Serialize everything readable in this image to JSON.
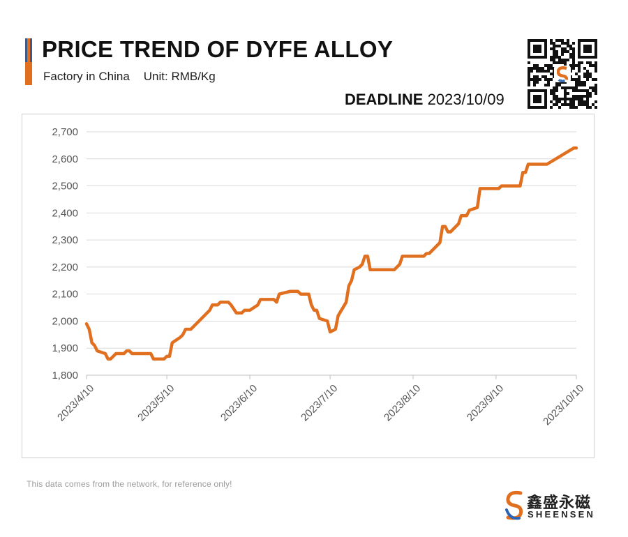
{
  "header": {
    "title": "PRICE TREND OF DYFE ALLOY",
    "subtitle_left": "Factory in China",
    "subtitle_right": "Unit: RMB/Kg",
    "deadline_label": "DEADLINE",
    "deadline_date": "2023/10/09"
  },
  "colors": {
    "line": "#e07020",
    "accent_blue": "#3d5a8a",
    "accent_orange": "#e07020",
    "grid": "#d9d9d9"
  },
  "icons": {
    "qr": "qr-code-icon",
    "brand": "sheensen-logo-icon"
  },
  "footer": {
    "note": "This data comes from the network, for reference only!",
    "brand_cn": "鑫盛永磁",
    "brand_en": "SHEENSEN"
  },
  "chart_data": {
    "type": "line",
    "title": "PRICE TREND OF DYFE ALLOY",
    "ylabel": "Unit: RMB/Kg",
    "ylim": [
      1800,
      2700
    ],
    "yticks": [
      1800,
      1900,
      2000,
      2100,
      2200,
      2300,
      2400,
      2500,
      2600,
      2700
    ],
    "ytick_labels": [
      "1,800",
      "1,900",
      "2,000",
      "2,100",
      "2,200",
      "2,300",
      "2,400",
      "2,500",
      "2,600",
      "2,700"
    ],
    "xlim": [
      "2023/4/10",
      "2023/10/10"
    ],
    "xticks": [
      "2023/4/10",
      "2023/5/10",
      "2023/6/10",
      "2023/7/10",
      "2023/8/10",
      "2023/9/10",
      "2023/10/10"
    ],
    "grid": "horizontal",
    "legend": "none",
    "series": [
      {
        "values": [
          [
            "2023/4/10",
            1990
          ],
          [
            "2023/4/11",
            1970
          ],
          [
            "2023/4/12",
            1920
          ],
          [
            "2023/4/13",
            1910
          ],
          [
            "2023/4/14",
            1890
          ],
          [
            "2023/4/17",
            1880
          ],
          [
            "2023/4/18",
            1860
          ],
          [
            "2023/4/19",
            1860
          ],
          [
            "2023/4/21",
            1880
          ],
          [
            "2023/4/24",
            1880
          ],
          [
            "2023/4/25",
            1890
          ],
          [
            "2023/4/26",
            1890
          ],
          [
            "2023/4/27",
            1880
          ],
          [
            "2023/5/4",
            1880
          ],
          [
            "2023/5/5",
            1860
          ],
          [
            "2023/5/9",
            1860
          ],
          [
            "2023/5/10",
            1870
          ],
          [
            "2023/5/11",
            1870
          ],
          [
            "2023/5/12",
            1920
          ],
          [
            "2023/5/15",
            1940
          ],
          [
            "2023/5/16",
            1950
          ],
          [
            "2023/5/17",
            1970
          ],
          [
            "2023/5/19",
            1970
          ],
          [
            "2023/5/20",
            1980
          ],
          [
            "2023/5/22",
            2000
          ],
          [
            "2023/5/25",
            2030
          ],
          [
            "2023/5/26",
            2040
          ],
          [
            "2023/5/27",
            2060
          ],
          [
            "2023/5/29",
            2060
          ],
          [
            "2023/5/30",
            2070
          ],
          [
            "2023/6/2",
            2070
          ],
          [
            "2023/6/3",
            2060
          ],
          [
            "2023/6/5",
            2030
          ],
          [
            "2023/6/7",
            2030
          ],
          [
            "2023/6/8",
            2040
          ],
          [
            "2023/6/10",
            2040
          ],
          [
            "2023/6/13",
            2060
          ],
          [
            "2023/6/14",
            2080
          ],
          [
            "2023/6/19",
            2080
          ],
          [
            "2023/6/20",
            2070
          ],
          [
            "2023/6/21",
            2100
          ],
          [
            "2023/6/25",
            2110
          ],
          [
            "2023/6/28",
            2110
          ],
          [
            "2023/6/29",
            2100
          ],
          [
            "2023/7/2",
            2100
          ],
          [
            "2023/7/3",
            2060
          ],
          [
            "2023/7/4",
            2040
          ],
          [
            "2023/7/5",
            2040
          ],
          [
            "2023/7/6",
            2010
          ],
          [
            "2023/7/9",
            2000
          ],
          [
            "2023/7/10",
            1960
          ],
          [
            "2023/7/12",
            1970
          ],
          [
            "2023/7/13",
            2020
          ],
          [
            "2023/7/16",
            2070
          ],
          [
            "2023/7/17",
            2130
          ],
          [
            "2023/7/18",
            2150
          ],
          [
            "2023/7/19",
            2190
          ],
          [
            "2023/7/21",
            2200
          ],
          [
            "2023/7/22",
            2210
          ],
          [
            "2023/7/23",
            2240
          ],
          [
            "2023/7/24",
            2240
          ],
          [
            "2023/7/25",
            2190
          ],
          [
            "2023/8/3",
            2190
          ],
          [
            "2023/8/5",
            2210
          ],
          [
            "2023/8/6",
            2240
          ],
          [
            "2023/8/14",
            2240
          ],
          [
            "2023/8/15",
            2250
          ],
          [
            "2023/8/16",
            2250
          ],
          [
            "2023/8/20",
            2290
          ],
          [
            "2023/8/21",
            2350
          ],
          [
            "2023/8/22",
            2350
          ],
          [
            "2023/8/23",
            2330
          ],
          [
            "2023/8/24",
            2330
          ],
          [
            "2023/8/27",
            2360
          ],
          [
            "2023/8/28",
            2390
          ],
          [
            "2023/8/30",
            2390
          ],
          [
            "2023/8/31",
            2410
          ],
          [
            "2023/9/3",
            2420
          ],
          [
            "2023/9/4",
            2490
          ],
          [
            "2023/9/11",
            2490
          ],
          [
            "2023/9/12",
            2500
          ],
          [
            "2023/9/19",
            2500
          ],
          [
            "2023/9/20",
            2550
          ],
          [
            "2023/9/21",
            2550
          ],
          [
            "2023/9/22",
            2580
          ],
          [
            "2023/9/29",
            2580
          ],
          [
            "2023/10/9",
            2640
          ],
          [
            "2023/10/10",
            2640
          ]
        ]
      }
    ]
  }
}
